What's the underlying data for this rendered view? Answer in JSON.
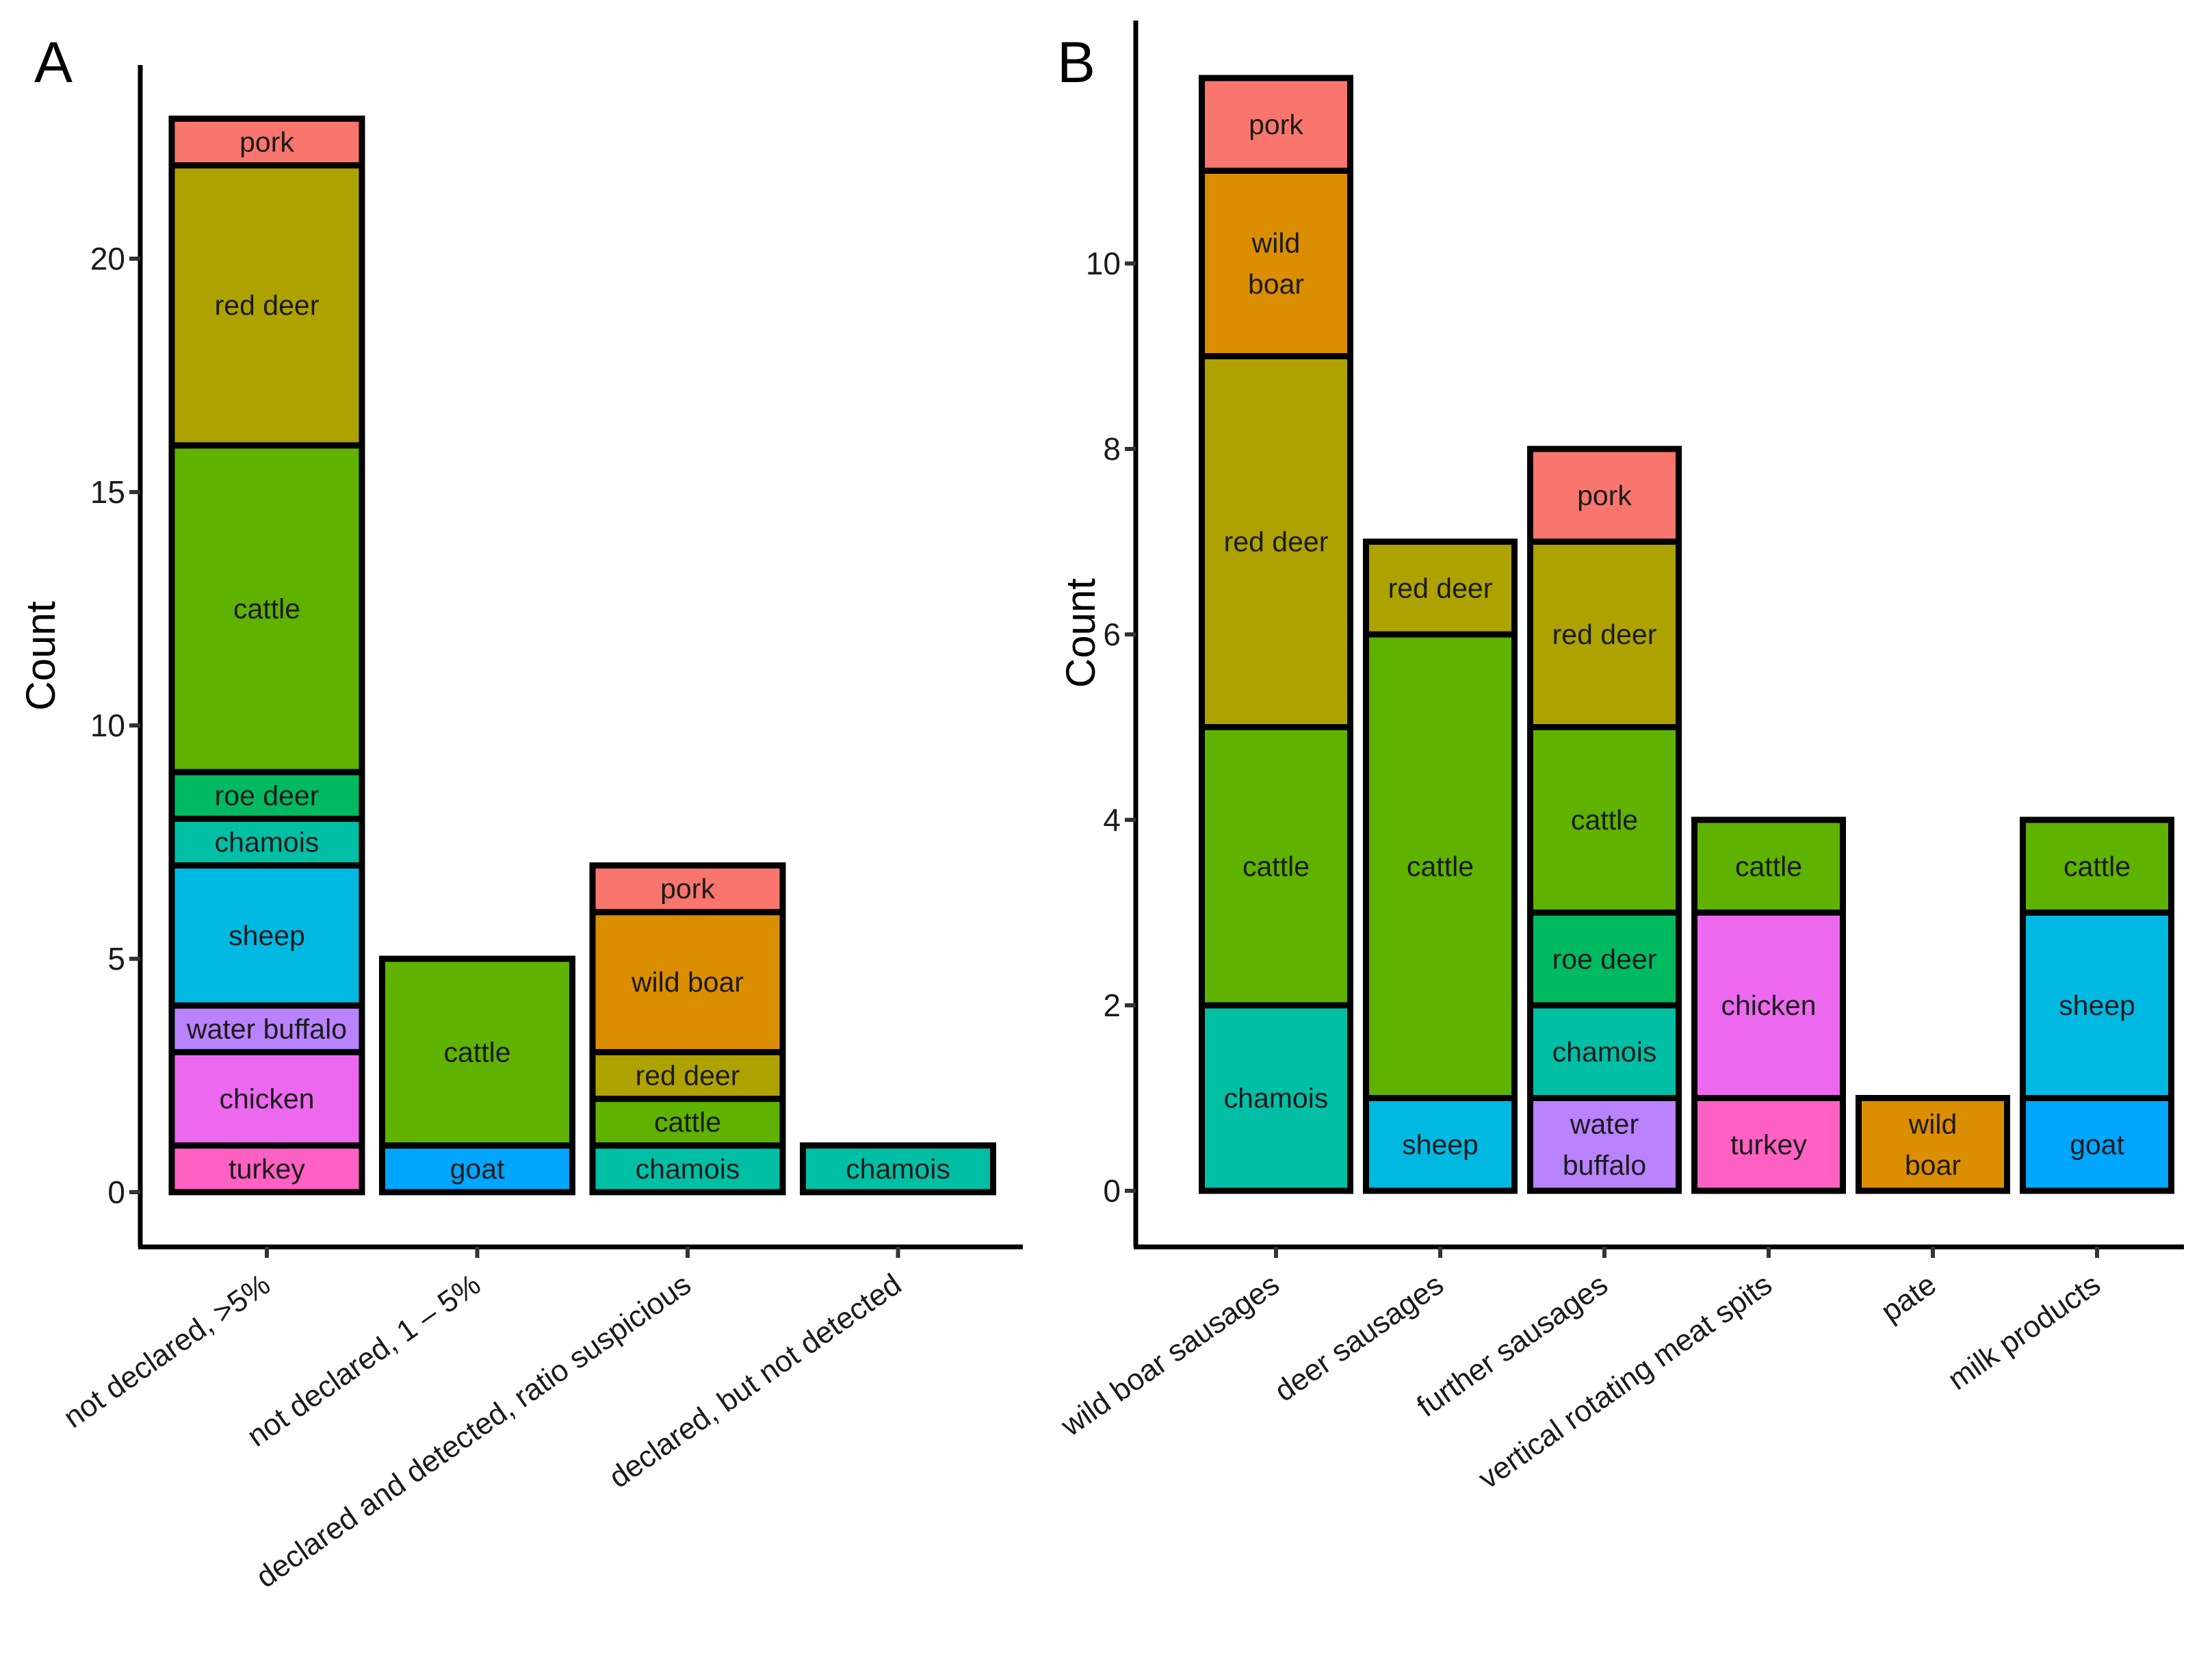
{
  "chart_data": [
    {
      "panel": "A",
      "type": "bar",
      "stacked": true,
      "ylabel": "Count",
      "xlabel": "",
      "ylim": [
        0,
        23
      ],
      "yticks": [
        0,
        5,
        10,
        15,
        20
      ],
      "grid": false,
      "legend": "none",
      "categories": [
        "not declared, >5%",
        "not declared, 1 – 5%",
        "declared and detected, ratio suspicious",
        "declared, but not detected"
      ],
      "stacks": [
        [
          {
            "label": "turkey",
            "value": 1,
            "color": "#FF61C3"
          },
          {
            "label": "chicken",
            "value": 2,
            "color": "#EC69EF"
          },
          {
            "label": "water buffalo",
            "value": 1,
            "color": "#B983FF"
          },
          {
            "label": "sheep",
            "value": 3,
            "color": "#00B9E3"
          },
          {
            "label": "chamois",
            "value": 1,
            "color": "#00BFA5"
          },
          {
            "label": "roe deer",
            "value": 1,
            "color": "#00BA62"
          },
          {
            "label": "cattle",
            "value": 7,
            "color": "#5FB200"
          },
          {
            "label": "red deer",
            "value": 6,
            "color": "#AEA200"
          },
          {
            "label": "pork",
            "value": 1,
            "color": "#F8766D"
          }
        ],
        [
          {
            "label": "goat",
            "value": 1,
            "color": "#00A6FF"
          },
          {
            "label": "cattle",
            "value": 4,
            "color": "#5FB200"
          }
        ],
        [
          {
            "label": "chamois",
            "value": 1,
            "color": "#00BFA5"
          },
          {
            "label": "cattle",
            "value": 1,
            "color": "#5FB200"
          },
          {
            "label": "red deer",
            "value": 1,
            "color": "#AEA200"
          },
          {
            "label": "wild boar",
            "value": 3,
            "color": "#DB8E00"
          },
          {
            "label": "pork",
            "value": 1,
            "color": "#F8766D"
          }
        ],
        [
          {
            "label": "chamois",
            "value": 1,
            "color": "#00BFA5"
          }
        ]
      ]
    },
    {
      "panel": "B",
      "type": "bar",
      "stacked": true,
      "ylabel": "Count",
      "xlabel": "",
      "ylim": [
        0,
        12
      ],
      "yticks": [
        0,
        2,
        4,
        6,
        8,
        10
      ],
      "grid": false,
      "legend": "none",
      "categories": [
        "wild boar sausages",
        "deer sausages",
        "further sausages",
        "vertical rotating meat spits",
        "pate",
        "milk products"
      ],
      "stacks": [
        [
          {
            "label": "chamois",
            "value": 2,
            "color": "#00BFA5"
          },
          {
            "label": "cattle",
            "value": 3,
            "color": "#5FB200"
          },
          {
            "label": "red deer",
            "value": 4,
            "color": "#AEA200"
          },
          {
            "label": "wild\nboar",
            "value": 2,
            "color": "#DB8E00"
          },
          {
            "label": "pork",
            "value": 1,
            "color": "#F8766D"
          }
        ],
        [
          {
            "label": "sheep",
            "value": 1,
            "color": "#00B9E3"
          },
          {
            "label": "cattle",
            "value": 5,
            "color": "#5FB200"
          },
          {
            "label": "red deer",
            "value": 1,
            "color": "#AEA200"
          }
        ],
        [
          {
            "label": "water\nbuffalo",
            "value": 1,
            "color": "#B983FF"
          },
          {
            "label": "chamois",
            "value": 1,
            "color": "#00BFA5"
          },
          {
            "label": "roe deer",
            "value": 1,
            "color": "#00BA62"
          },
          {
            "label": "cattle",
            "value": 2,
            "color": "#5FB200"
          },
          {
            "label": "red deer",
            "value": 2,
            "color": "#AEA200"
          },
          {
            "label": "pork",
            "value": 1,
            "color": "#F8766D"
          }
        ],
        [
          {
            "label": "turkey",
            "value": 1,
            "color": "#FF61C3"
          },
          {
            "label": "chicken",
            "value": 2,
            "color": "#EC69EF"
          },
          {
            "label": "cattle",
            "value": 1,
            "color": "#5FB200"
          }
        ],
        [
          {
            "label": "wild\nboar",
            "value": 1,
            "color": "#DB8E00"
          }
        ],
        [
          {
            "label": "goat",
            "value": 1,
            "color": "#00A6FF"
          },
          {
            "label": "sheep",
            "value": 2,
            "color": "#00B9E3"
          },
          {
            "label": "cattle",
            "value": 1,
            "color": "#5FB200"
          }
        ]
      ]
    }
  ]
}
